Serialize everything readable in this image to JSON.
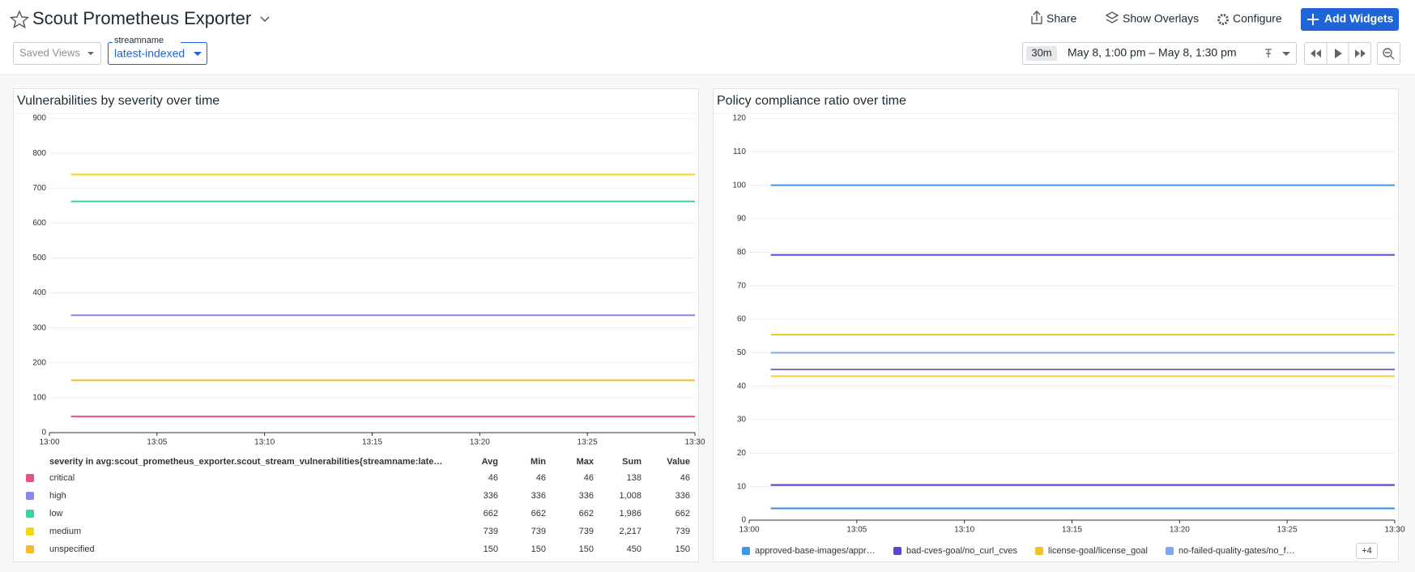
{
  "header": {
    "title": "Scout Prometheus Exporter",
    "share": "Share",
    "overlays": "Show Overlays",
    "configure": "Configure",
    "add_widgets": "Add Widgets",
    "saved_views": "Saved Views",
    "variable_label": "streamname",
    "variable_value": "latest-indexed",
    "time_span": "30m",
    "time_range": "May 8, 1:00 pm – May 8, 1:30 pm"
  },
  "chart_data": [
    {
      "type": "line",
      "title": "Vulnerabilities by severity over time",
      "x": [
        "13:01",
        "13:30"
      ],
      "xlim": [
        "13:00",
        "13:30"
      ],
      "xticks": [
        "13:00",
        "13:05",
        "13:10",
        "13:15",
        "13:20",
        "13:25",
        "13:30"
      ],
      "ylim": [
        0,
        900
      ],
      "yticks": [
        0,
        100,
        200,
        300,
        400,
        500,
        600,
        700,
        800,
        900
      ],
      "grid": true,
      "series": [
        {
          "name": "critical",
          "color": "#e8508a",
          "values": [
            46,
            46
          ]
        },
        {
          "name": "high",
          "color": "#8b87f0",
          "values": [
            336,
            336
          ]
        },
        {
          "name": "low",
          "color": "#3fcfa4",
          "values": [
            662,
            662
          ]
        },
        {
          "name": "medium",
          "color": "#f2d60f",
          "values": [
            739,
            739
          ]
        },
        {
          "name": "unspecified",
          "color": "#f8bb2d",
          "values": [
            150,
            150
          ]
        }
      ],
      "table": {
        "header": "severity in avg:scout_prometheus_exporter.scout_stream_vulnerabilities{streamname:late…",
        "columns": [
          "Avg",
          "Min",
          "Max",
          "Sum",
          "Value"
        ],
        "rows": [
          [
            46,
            46,
            46,
            138,
            46
          ],
          [
            336,
            336,
            336,
            {
              "value": 1008,
              "label": "1,008"
            },
            336
          ],
          [
            662,
            662,
            662,
            {
              "value": 1986,
              "label": "1,986"
            },
            662
          ],
          [
            739,
            739,
            739,
            {
              "value": 2217,
              "label": "2,217"
            },
            739
          ],
          [
            150,
            150,
            150,
            450,
            150
          ]
        ]
      }
    },
    {
      "type": "line",
      "title": "Policy compliance ratio over time",
      "x": [
        "13:01",
        "13:30"
      ],
      "xlim": [
        "13:00",
        "13:30"
      ],
      "xticks": [
        "13:00",
        "13:05",
        "13:10",
        "13:15",
        "13:20",
        "13:25",
        "13:30"
      ],
      "ylim": [
        0,
        120
      ],
      "yticks": [
        0,
        10,
        20,
        30,
        40,
        50,
        60,
        70,
        80,
        90,
        100,
        110,
        120
      ],
      "grid": true,
      "series": [
        {
          "name": "approved-base-images/appr…",
          "color": "#3b97e8",
          "values": [
            100,
            100
          ]
        },
        {
          "name": "bad-cves-goal/no_curl_cves",
          "color": "#5a46c9",
          "values": [
            79.2,
            79.2
          ]
        },
        {
          "name": "license-goal/license_goal",
          "color": "#f5c324",
          "values": [
            55.4,
            55.4
          ]
        },
        {
          "name": "no-failed-quality-gates/no_f…",
          "color": "#7fa8f0",
          "values": [
            50,
            50
          ]
        },
        {
          "name": null,
          "color": "#7a70d8",
          "values": [
            45,
            45
          ]
        },
        {
          "name": null,
          "color": "#f8d048",
          "values": [
            43,
            43
          ]
        },
        {
          "name": null,
          "color": "#4b3cc0",
          "values": [
            10.5,
            10.5
          ]
        },
        {
          "name": null,
          "color": "#2f8ee0",
          "values": [
            3.5,
            3.5
          ]
        }
      ],
      "legend_more": "+4"
    }
  ]
}
